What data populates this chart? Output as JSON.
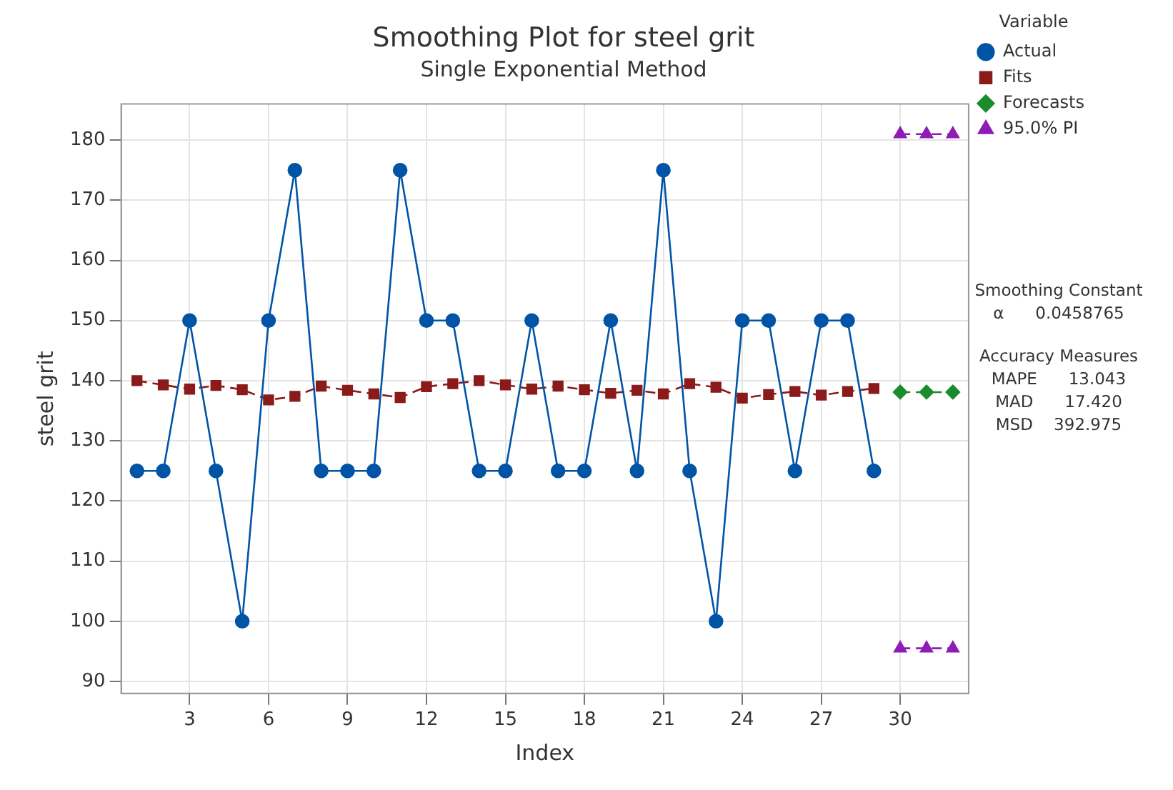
{
  "chart_data": {
    "type": "line",
    "title": "Smoothing Plot for steel grit",
    "subtitle": "Single Exponential Method",
    "xlabel": "Index",
    "ylabel": "steel grit",
    "legend_title": "Variable",
    "x": [
      1,
      2,
      3,
      4,
      5,
      6,
      7,
      8,
      9,
      10,
      11,
      12,
      13,
      14,
      15,
      16,
      17,
      18,
      19,
      20,
      21,
      22,
      23,
      24,
      25,
      26,
      27,
      28,
      29
    ],
    "series": [
      {
        "name": "Actual",
        "color": "#0054a6",
        "marker": "circle",
        "line_style": "solid",
        "values": [
          125,
          125,
          150,
          125,
          100,
          150,
          175,
          125,
          125,
          125,
          175,
          150,
          150,
          125,
          125,
          150,
          125,
          125,
          150,
          125,
          175,
          125,
          100,
          150,
          150,
          125,
          150,
          150,
          125
        ]
      },
      {
        "name": "Fits",
        "color": "#8b1a1a",
        "marker": "square",
        "line_style": "dashed",
        "values": [
          140.0,
          139.3,
          138.6,
          139.2,
          138.5,
          136.8,
          137.4,
          139.1,
          138.4,
          137.8,
          137.2,
          139.0,
          139.5,
          140.0,
          139.3,
          138.6,
          139.1,
          138.5,
          137.9,
          138.4,
          137.8,
          139.5,
          138.9,
          137.1,
          137.7,
          138.2,
          137.6,
          138.2,
          138.7
        ]
      },
      {
        "name": "Forecasts",
        "color": "#1a8c2e",
        "marker": "diamond",
        "line_style": "dashed",
        "x": [
          30,
          31,
          32
        ],
        "values": [
          138.1,
          138.1,
          138.1
        ]
      },
      {
        "name": "95.0% PI",
        "color": "#8e1cb5",
        "marker": "triangle",
        "line_style": "dashed",
        "x": [
          30,
          31,
          32
        ],
        "values": [
          181,
          181,
          181
        ]
      },
      {
        "color": "#8e1cb5",
        "marker": "triangle",
        "line_style": "dashed",
        "x": [
          30,
          31,
          32
        ],
        "values": [
          95.5,
          95.5,
          95.5
        ]
      }
    ],
    "xlim": [
      0.4,
      32.6
    ],
    "xticks": [
      3,
      6,
      9,
      12,
      15,
      18,
      21,
      24,
      27,
      30
    ],
    "ylim": [
      88,
      186
    ],
    "yticks": [
      90,
      100,
      110,
      120,
      130,
      140,
      150,
      160,
      170,
      180
    ],
    "grid": true,
    "legend": "right",
    "annotations": [
      "Smoothing Constant",
      "α      0.0458765",
      "Accuracy Measures",
      "MAPE      13.043",
      "MAD      17.420",
      "MSD    392.975"
    ]
  }
}
